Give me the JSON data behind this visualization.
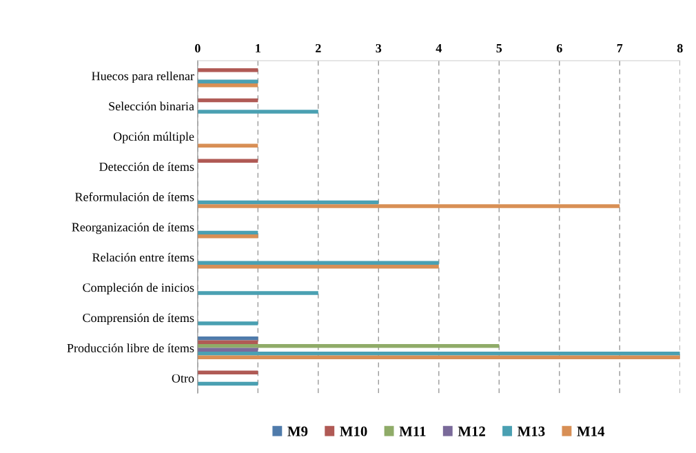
{
  "chart_data": {
    "type": "bar",
    "orientation": "horizontal",
    "categories": [
      "Huecos para rellenar",
      "Selección binaria",
      "Opción múltiple",
      "Detección de ítems",
      "Reformulación de ítems",
      "Reorganización de ítems",
      "Relación entre ítems",
      "Compleción de inicios",
      "Comprensión de ítems",
      "Producción libre de ítems",
      "Otro"
    ],
    "series": [
      {
        "name": "M9",
        "color": "#4f7bab",
        "values": [
          null,
          null,
          null,
          null,
          null,
          null,
          null,
          null,
          null,
          1,
          null
        ]
      },
      {
        "name": "M10",
        "color": "#b05a55",
        "values": [
          1,
          1,
          null,
          1,
          null,
          null,
          null,
          null,
          null,
          1,
          1
        ]
      },
      {
        "name": "M11",
        "color": "#8fab68",
        "values": [
          null,
          null,
          null,
          null,
          null,
          null,
          null,
          null,
          null,
          5,
          null
        ]
      },
      {
        "name": "M12",
        "color": "#7a6a9a",
        "values": [
          null,
          null,
          null,
          null,
          null,
          null,
          null,
          null,
          null,
          1,
          null
        ]
      },
      {
        "name": "M13",
        "color": "#4aa0b2",
        "values": [
          1,
          2,
          null,
          null,
          3,
          1,
          4,
          2,
          1,
          8,
          1
        ]
      },
      {
        "name": "M14",
        "color": "#d88f55",
        "values": [
          1,
          null,
          1,
          null,
          7,
          1,
          4,
          null,
          null,
          8,
          null
        ]
      }
    ],
    "xlim": [
      0,
      8
    ],
    "xticks": [
      0,
      1,
      2,
      3,
      4,
      5,
      6,
      7,
      8
    ],
    "grid": "x",
    "legend": "bottom"
  }
}
